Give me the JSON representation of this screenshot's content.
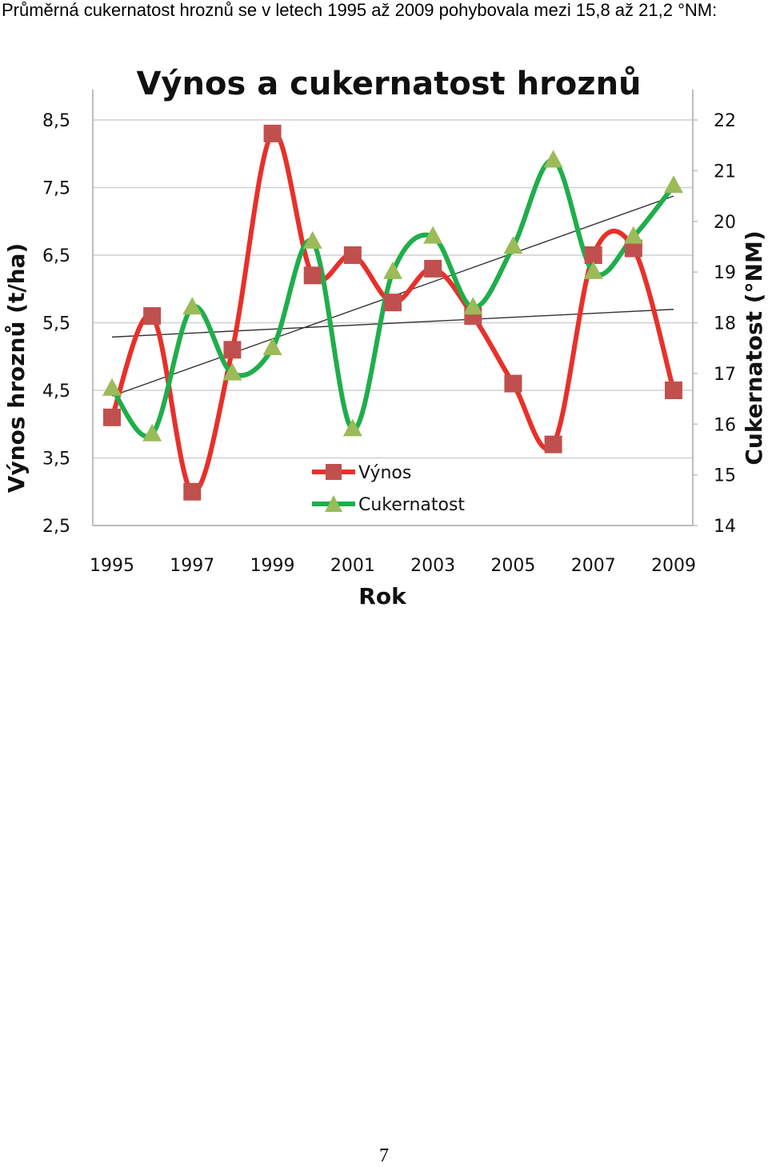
{
  "caption": "Průměrná cukernatost hroznů se v letech 1995 až 2009 pohybovala mezi 15,8 až 21,2 °NM:",
  "page_number": "7",
  "chart_data": {
    "type": "line",
    "title": "Výnos a cukernatost hroznů",
    "xlabel": "Rok",
    "ylabel_left": "Výnos hroznů (t/ha)",
    "ylabel_right": "Cukernatost (°NM)",
    "x": [
      1995,
      1996,
      1997,
      1998,
      1999,
      2000,
      2001,
      2002,
      2003,
      2004,
      2005,
      2006,
      2007,
      2008,
      2009
    ],
    "x_tick_labels": [
      "1995",
      "1997",
      "1999",
      "2001",
      "2003",
      "2005",
      "2007",
      "2009"
    ],
    "ylim_left": [
      2.5,
      8.5
    ],
    "yticks_left": [
      "2,5",
      "3,5",
      "4,5",
      "5,5",
      "6,5",
      "7,5",
      "8,5"
    ],
    "ylim_right": [
      14,
      22
    ],
    "yticks_right": [
      "14",
      "15",
      "16",
      "17",
      "18",
      "19",
      "20",
      "21",
      "22"
    ],
    "grid": true,
    "legend_position": "bottom-center",
    "smooth": true,
    "trendlines": true,
    "series": [
      {
        "name": "Výnos",
        "axis": "left",
        "color": "#e8302a",
        "marker_color": "#c0504d",
        "marker": "square",
        "values": [
          4.1,
          5.6,
          3.0,
          5.1,
          8.3,
          6.2,
          6.5,
          5.8,
          6.3,
          5.6,
          4.6,
          3.7,
          6.5,
          6.6,
          4.5
        ]
      },
      {
        "name": "Cukernatost",
        "axis": "right",
        "color": "#1fae4b",
        "marker_color": "#9bbb59",
        "marker": "triangle",
        "values": [
          16.7,
          15.8,
          18.3,
          17.0,
          17.5,
          19.6,
          15.9,
          19.0,
          19.7,
          18.3,
          19.5,
          21.2,
          19.0,
          19.7,
          20.7
        ]
      }
    ]
  }
}
